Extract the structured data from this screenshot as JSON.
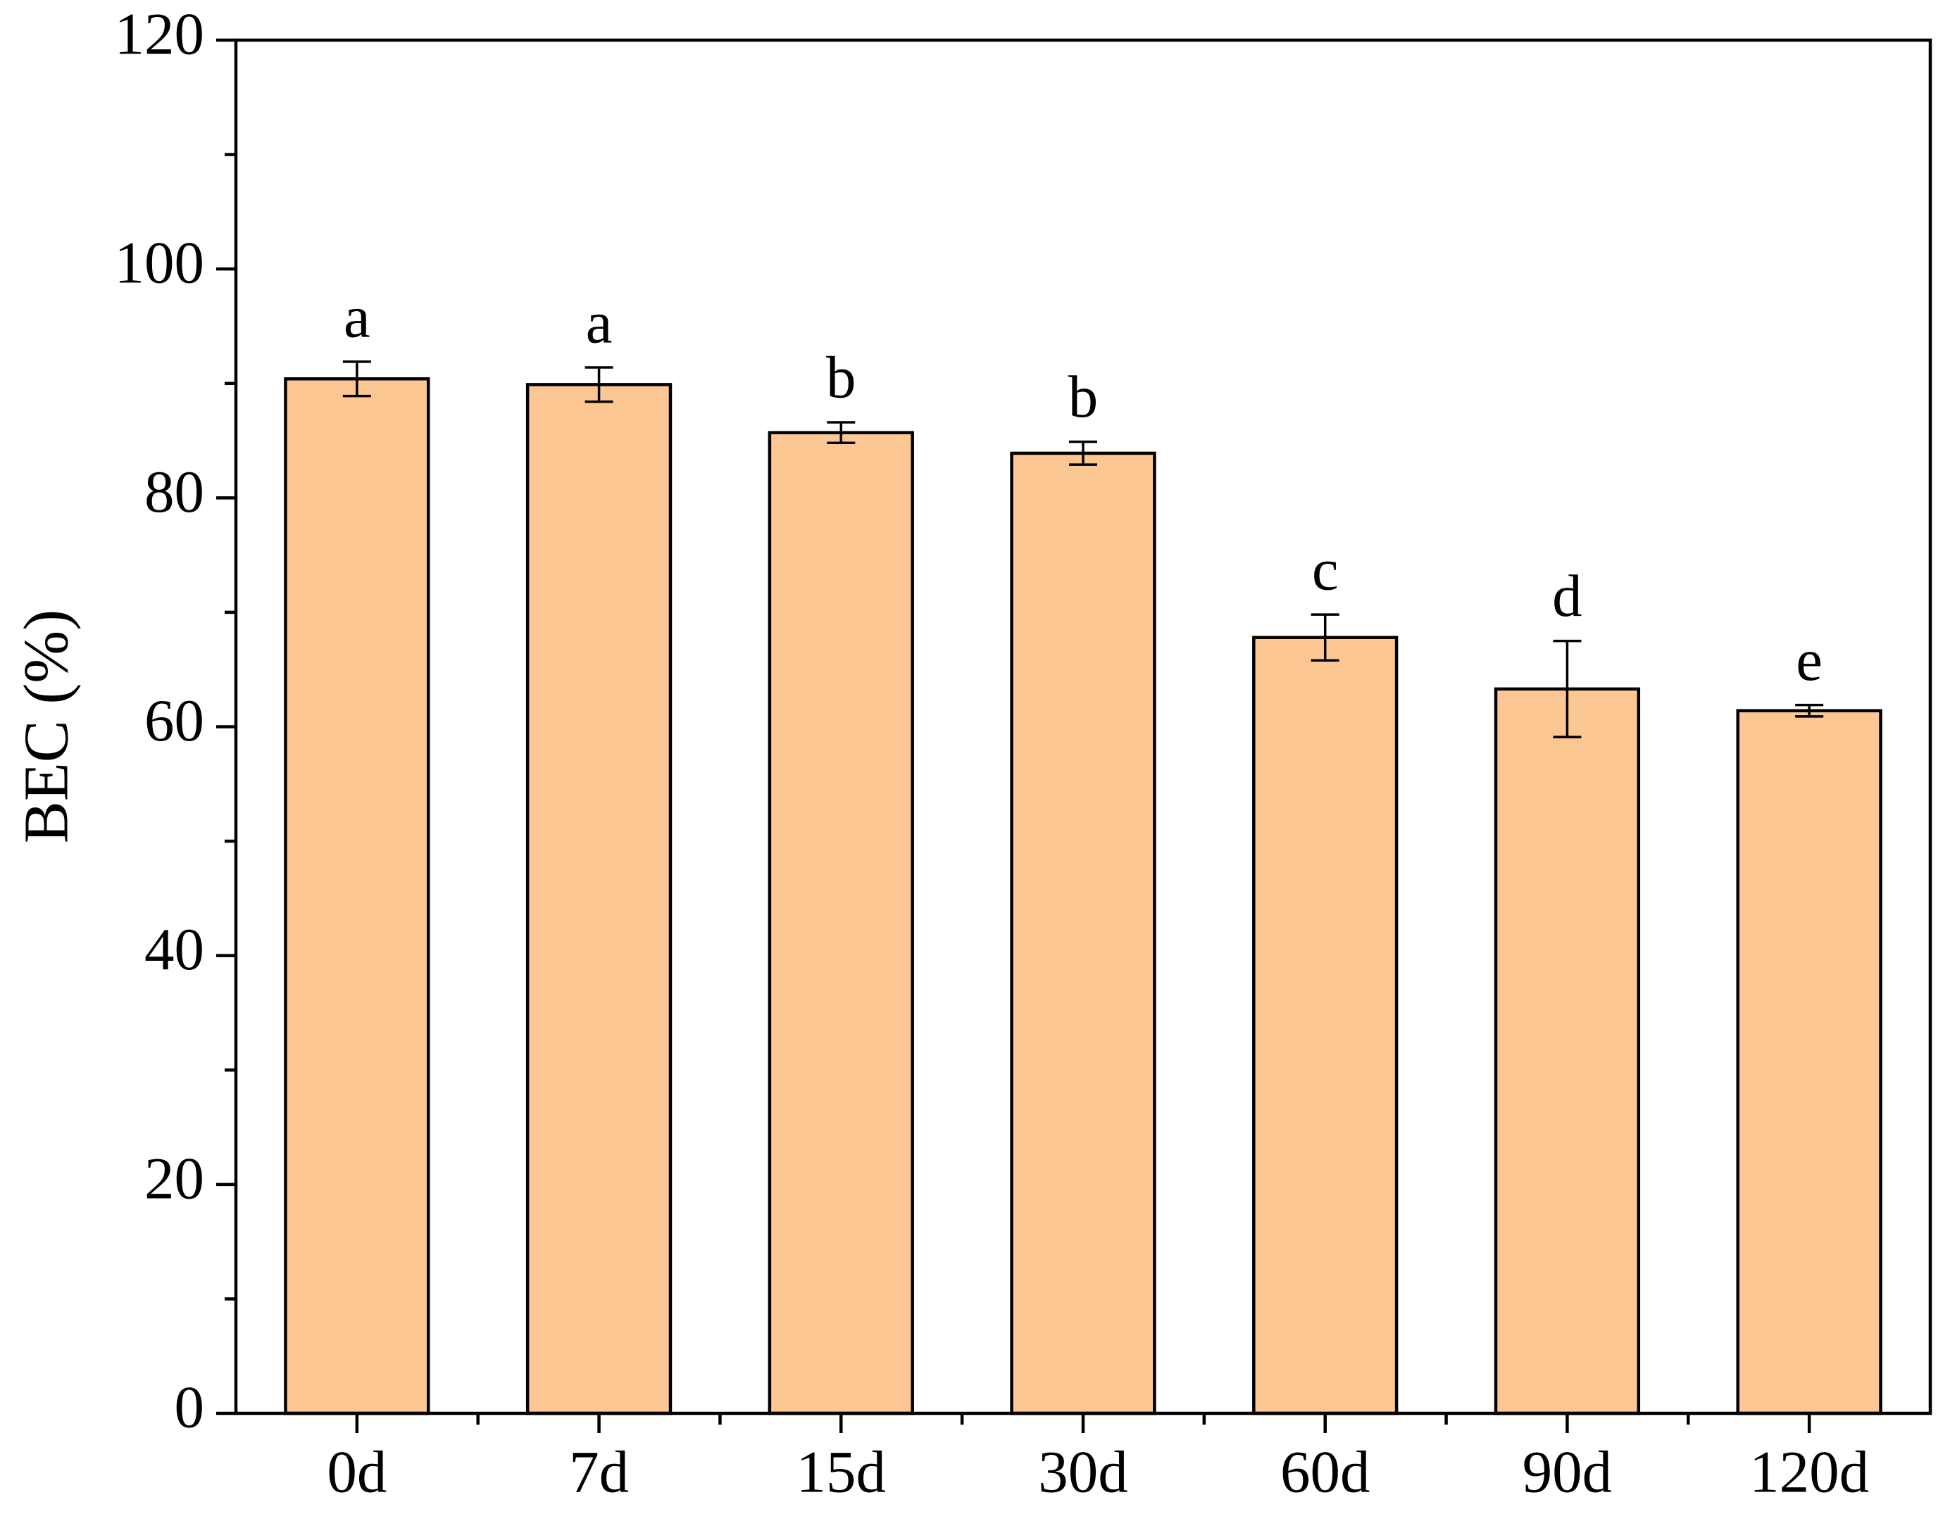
{
  "chart_data": {
    "type": "bar",
    "y_label": "BEC (%)",
    "categories": [
      "0d",
      "7d",
      "15d",
      "30d",
      "60d",
      "90d",
      "120d"
    ],
    "values": [
      90.4,
      89.9,
      85.7,
      83.9,
      67.8,
      63.3,
      61.4
    ],
    "errors": [
      1.5,
      1.5,
      0.9,
      1.0,
      2.0,
      4.2,
      0.5
    ],
    "annotations": [
      "a",
      "a",
      "b",
      "b",
      "c",
      "d",
      "e"
    ],
    "color": "#fdc793",
    "ylim": [
      0,
      120
    ],
    "yticks": [
      0,
      20,
      40,
      60,
      80,
      100,
      120
    ],
    "minor_yticks": [
      10,
      30,
      50,
      70,
      90,
      110
    ]
  }
}
